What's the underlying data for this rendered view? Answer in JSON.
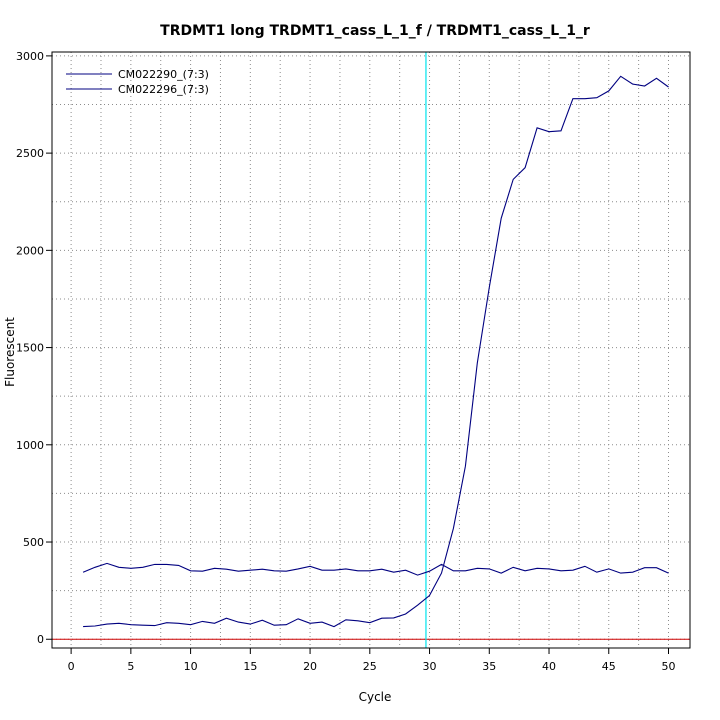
{
  "chart_data": {
    "type": "line",
    "title": "TRDMT1 long TRDMT1_cass_L_1_f / TRDMT1_cass_L_1_r",
    "xlabel": "Cycle",
    "ylabel": "Fluorescent",
    "xlim": [
      -1.6,
      51.8
    ],
    "ylim": [
      -45,
      3020
    ],
    "x_ticks": [
      0,
      5,
      10,
      15,
      20,
      25,
      30,
      35,
      40,
      45,
      50
    ],
    "y_ticks": [
      0,
      500,
      1000,
      1500,
      2000,
      2500,
      3000
    ],
    "x_grid": [
      2.5,
      7.5,
      12.5,
      17.5,
      22.5,
      27.5,
      32.5,
      37.5,
      42.5,
      47.5
    ],
    "y_grid": [
      0,
      250,
      500,
      750,
      1000,
      1250,
      1500,
      1750,
      2000,
      2250,
      2500,
      2750,
      3000
    ],
    "grid": true,
    "legend_position": "top-left",
    "threshold_cycle": 29.7,
    "threshold_color": "#00e5ee",
    "baseline": 0,
    "baseline_color": "#cd0000",
    "series_color": "#000080",
    "x": [
      1,
      2,
      3,
      4,
      5,
      6,
      7,
      8,
      9,
      10,
      11,
      12,
      13,
      14,
      15,
      16,
      17,
      18,
      19,
      20,
      21,
      22,
      23,
      24,
      25,
      26,
      27,
      28,
      29,
      30,
      31,
      32,
      33,
      34,
      35,
      36,
      37,
      38,
      39,
      40,
      41,
      42,
      43,
      44,
      45,
      46,
      47,
      48,
      49,
      50
    ],
    "series": [
      {
        "name": "CM022290_(7:3)",
        "values": [
          65,
          68,
          78,
          82,
          75,
          72,
          70,
          85,
          82,
          75,
          92,
          82,
          108,
          88,
          78,
          98,
          72,
          75,
          105,
          82,
          88,
          65,
          100,
          95,
          85,
          108,
          110,
          130,
          175,
          225,
          340,
          570,
          890,
          1420,
          1810,
          2165,
          2365,
          2425,
          2630,
          2610,
          2615,
          2780,
          2780,
          2785,
          2820,
          2895,
          2855,
          2845,
          2885,
          2840
        ]
      },
      {
        "name": "CM022296_(7:3)",
        "values": [
          345,
          370,
          390,
          370,
          365,
          370,
          385,
          385,
          380,
          352,
          350,
          365,
          360,
          350,
          355,
          360,
          352,
          350,
          362,
          375,
          355,
          355,
          362,
          352,
          352,
          360,
          345,
          355,
          330,
          350,
          385,
          352,
          352,
          365,
          362,
          340,
          370,
          352,
          365,
          362,
          352,
          355,
          375,
          345,
          362,
          340,
          345,
          368,
          368,
          340
        ]
      }
    ]
  }
}
